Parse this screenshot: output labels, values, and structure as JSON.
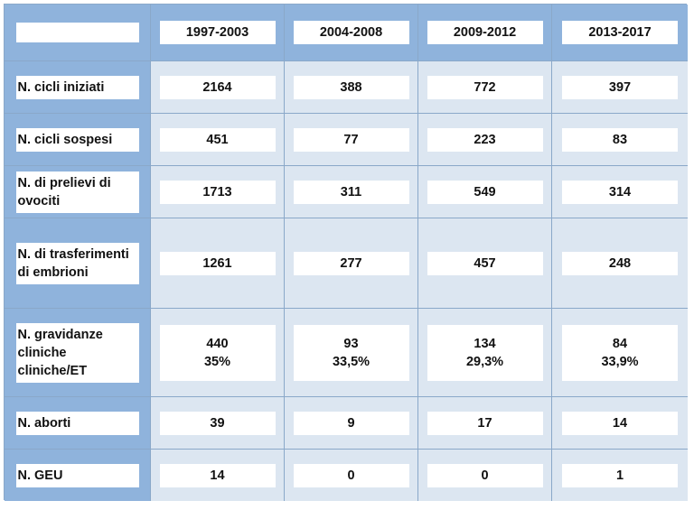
{
  "table": {
    "header_label": "",
    "columns": [
      "1997-2003",
      "2004-2008",
      "2009-2012",
      "2013-2017"
    ],
    "rows": [
      {
        "label_lines": [
          "N. cicli iniziati"
        ],
        "values": [
          [
            "2164"
          ],
          [
            "388"
          ],
          [
            "772"
          ],
          [
            "397"
          ]
        ]
      },
      {
        "label_lines": [
          "N. cicli sospesi"
        ],
        "values": [
          [
            "451"
          ],
          [
            "77"
          ],
          [
            "223"
          ],
          [
            "83"
          ]
        ]
      },
      {
        "label_lines": [
          "N. di prelievi di",
          "ovociti"
        ],
        "values": [
          [
            "1713"
          ],
          [
            "311"
          ],
          [
            "549"
          ],
          [
            "314"
          ]
        ]
      },
      {
        "label_lines": [
          "N. di trasferimenti",
          "di embrioni"
        ],
        "values": [
          [
            "1261"
          ],
          [
            "277"
          ],
          [
            "457"
          ],
          [
            "248"
          ]
        ]
      },
      {
        "label_lines": [
          "N. gravidanze",
          "cliniche",
          "cliniche/ET"
        ],
        "values": [
          [
            "440",
            "35%"
          ],
          [
            "93",
            "33,5%"
          ],
          [
            "134",
            "29,3%"
          ],
          [
            "84",
            "33,9%"
          ]
        ]
      },
      {
        "label_lines": [
          "N. aborti"
        ],
        "values": [
          [
            "39"
          ],
          [
            "9"
          ],
          [
            "17"
          ],
          [
            "14"
          ]
        ]
      },
      {
        "label_lines": [
          "N. GEU"
        ],
        "values": [
          [
            "14"
          ],
          [
            "0"
          ],
          [
            "0"
          ],
          [
            "1"
          ]
        ]
      }
    ]
  }
}
